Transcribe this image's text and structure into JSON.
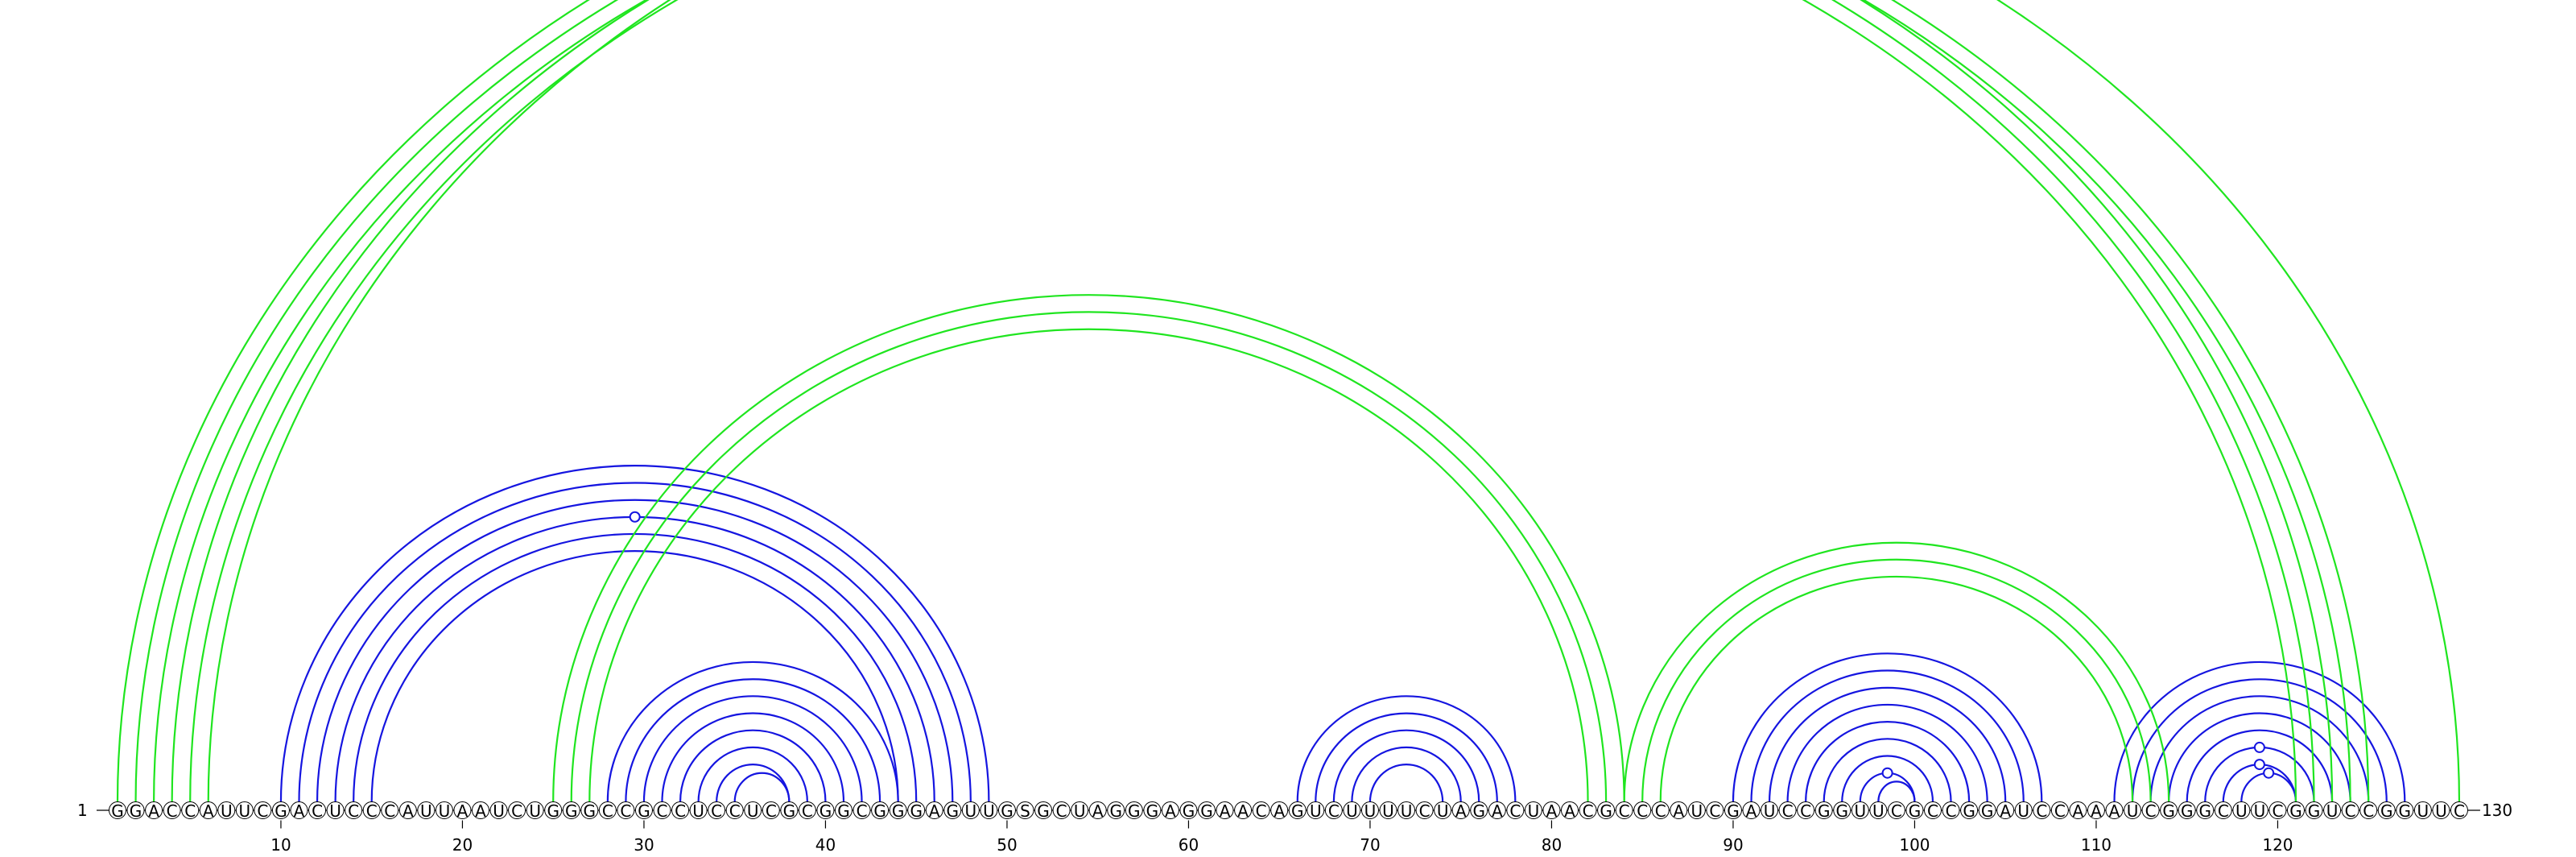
{
  "sequence": {
    "start_label": "1",
    "end_label": "130",
    "letters": "GGACCAUUCGACUCCCAUUAAUCUGGGCCGCCUCCUCGCGGCGGGAGUUGSGCUAGGGAGGAACAGUCUUUUCUAGACUAACGCCCAUCGAUCCGGUUCGCCGGAUCCAAAUCGGGCUUCGGUCCGGUUC"
  },
  "ticks": [
    "10",
    "20",
    "30",
    "40",
    "50",
    "60",
    "70",
    "80",
    "90",
    "100",
    "110",
    "120"
  ],
  "colors": {
    "blue": "#1515e0",
    "green": "#1fe51f"
  },
  "arcs": {
    "blue": [
      [
        10,
        49
      ],
      [
        11,
        48
      ],
      [
        12,
        47
      ],
      [
        13,
        46
      ],
      [
        14,
        45
      ],
      [
        15,
        44
      ],
      [
        28,
        44
      ],
      [
        29,
        43
      ],
      [
        30,
        42
      ],
      [
        31,
        41
      ],
      [
        32,
        40
      ],
      [
        33,
        39
      ],
      [
        34,
        38
      ],
      [
        35,
        38
      ],
      [
        66,
        78
      ],
      [
        67,
        77
      ],
      [
        68,
        76
      ],
      [
        69,
        75
      ],
      [
        70,
        74
      ],
      [
        90,
        107
      ],
      [
        91,
        106
      ],
      [
        92,
        105
      ],
      [
        93,
        104
      ],
      [
        94,
        103
      ],
      [
        95,
        102
      ],
      [
        96,
        101
      ],
      [
        97,
        100
      ],
      [
        98,
        100
      ],
      [
        111,
        127
      ],
      [
        112,
        126
      ],
      [
        113,
        125
      ],
      [
        114,
        124
      ],
      [
        115,
        123
      ],
      [
        116,
        122
      ],
      [
        117,
        121
      ],
      [
        118,
        121
      ]
    ],
    "green": [
      [
        1,
        123
      ],
      [
        2,
        122
      ],
      [
        3,
        121
      ],
      [
        4,
        125
      ],
      [
        5,
        124
      ],
      [
        6,
        130
      ],
      [
        25,
        84
      ],
      [
        26,
        83
      ],
      [
        27,
        82
      ],
      [
        84,
        114
      ],
      [
        85,
        113
      ],
      [
        86,
        112
      ]
    ]
  },
  "markers": {
    "blue": [
      [
        13,
        46
      ],
      [
        97,
        100
      ],
      [
        116,
        122
      ],
      [
        117,
        121
      ],
      [
        118,
        121
      ]
    ],
    "green": [
      [
        6,
        130
      ]
    ]
  }
}
